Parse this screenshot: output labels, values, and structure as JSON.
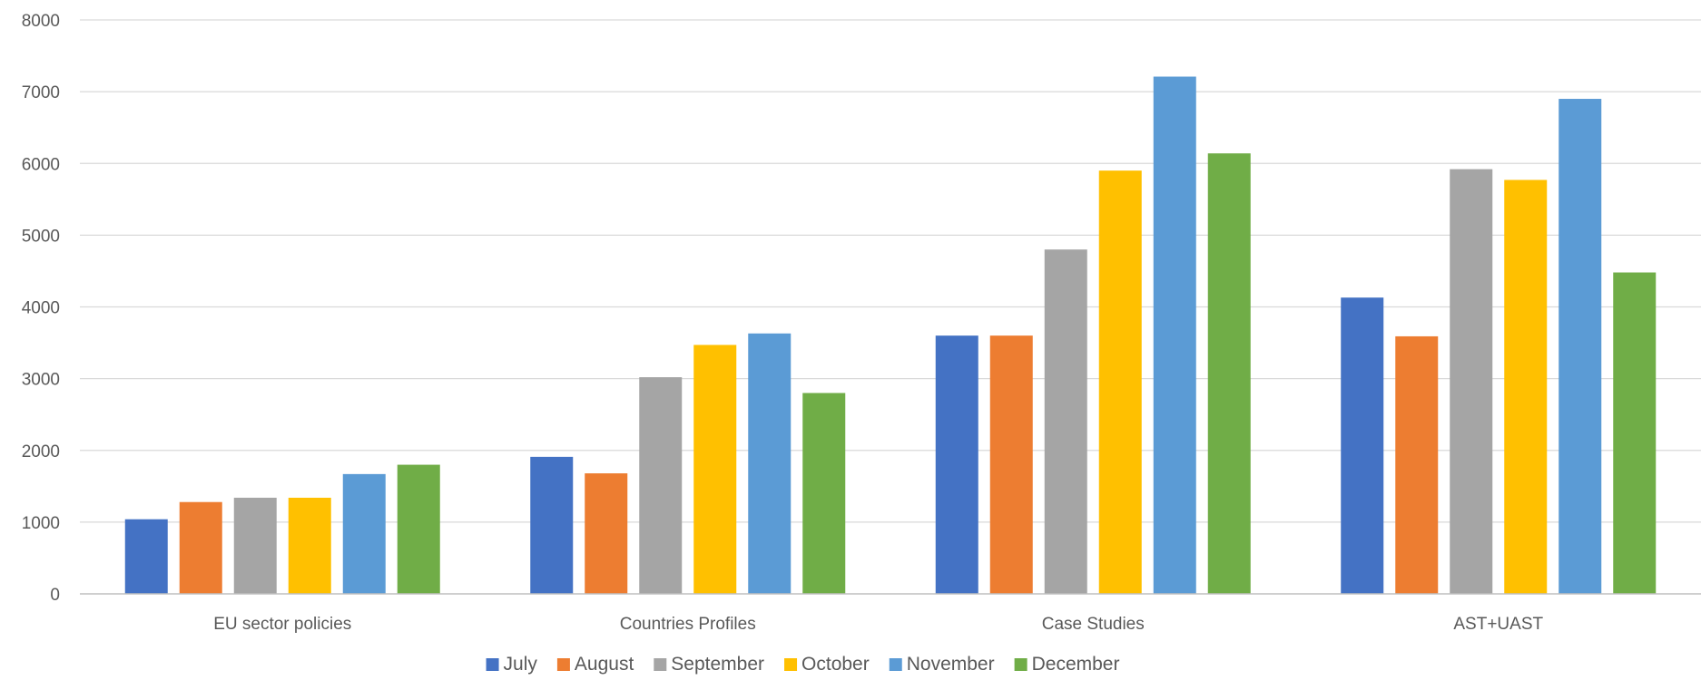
{
  "chart_data": {
    "type": "bar",
    "title": "",
    "xlabel": "",
    "ylabel": "",
    "ylim": [
      0,
      8000
    ],
    "yticks": [
      0,
      1000,
      2000,
      3000,
      4000,
      5000,
      6000,
      7000,
      8000
    ],
    "grid": true,
    "legend_position": "bottom",
    "categories": [
      "EU sector policies",
      "Countries Profiles",
      "Case Studies",
      "AST+UAST"
    ],
    "series": [
      {
        "name": "July",
        "color": "#4472C4",
        "values": [
          1040,
          1910,
          3600,
          4130
        ]
      },
      {
        "name": "August",
        "color": "#ED7D31",
        "values": [
          1280,
          1680,
          3600,
          3590
        ]
      },
      {
        "name": "September",
        "color": "#A5A5A5",
        "values": [
          1340,
          3020,
          4800,
          5920
        ]
      },
      {
        "name": "October",
        "color": "#FFC000",
        "values": [
          1340,
          3470,
          5900,
          5770
        ]
      },
      {
        "name": "November",
        "color": "#5B9BD5",
        "values": [
          1670,
          3630,
          7210,
          6900
        ]
      },
      {
        "name": "December",
        "color": "#70AD47",
        "values": [
          1800,
          2800,
          6140,
          4480
        ]
      }
    ]
  }
}
